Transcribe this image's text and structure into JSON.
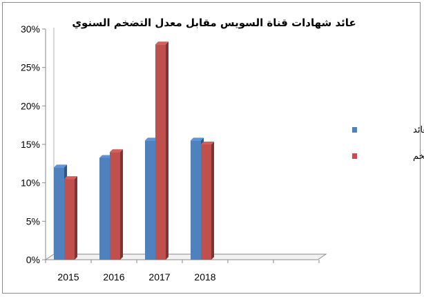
{
  "chart_data": {
    "type": "bar",
    "title": "عائد شهادات قناة السويس مقابل معدل التضخم السنوي",
    "categories": [
      "2015",
      "2016",
      "2017",
      "2018"
    ],
    "series": [
      {
        "name": "العائد",
        "values": [
          12,
          13.25,
          15.5,
          15.5
        ],
        "color": "#4F81BD"
      },
      {
        "name": "معدل التضخم",
        "values": [
          10.5,
          14,
          28,
          15
        ],
        "color": "#C0504D"
      }
    ],
    "y_ticks": [
      "0%",
      "5%",
      "10%",
      "15%",
      "20%",
      "25%",
      "30%"
    ],
    "ylim": [
      0,
      30
    ],
    "y_unit": "%",
    "legend_position": "right",
    "grid": false,
    "style": "3d-column"
  }
}
